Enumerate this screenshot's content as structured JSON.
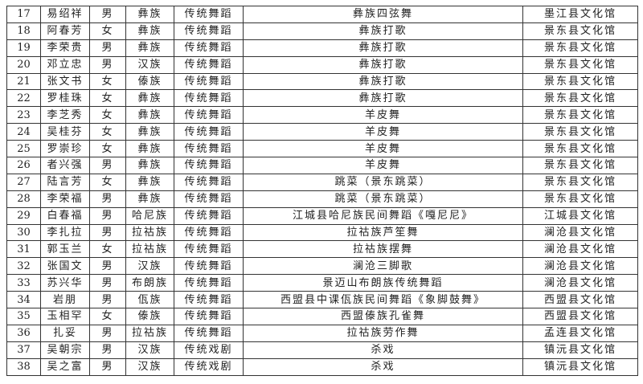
{
  "rows": [
    [
      "17",
      "易绍祥",
      "男",
      "彝族",
      "传统舞蹈",
      "彝族四弦舞",
      "墨江县文化馆"
    ],
    [
      "18",
      "阿春芳",
      "女",
      "彝族",
      "传统舞蹈",
      "彝族打歌",
      "景东县文化馆"
    ],
    [
      "19",
      "李荣贵",
      "男",
      "彝族",
      "传统舞蹈",
      "彝族打歌",
      "景东县文化馆"
    ],
    [
      "20",
      "邓立忠",
      "男",
      "汉族",
      "传统舞蹈",
      "彝族打歌",
      "景东县文化馆"
    ],
    [
      "21",
      "张文书",
      "女",
      "傣族",
      "传统舞蹈",
      "彝族打歌",
      "景东县文化馆"
    ],
    [
      "22",
      "罗桂珠",
      "女",
      "彝族",
      "传统舞蹈",
      "彝族打歌",
      "景东县文化馆"
    ],
    [
      "23",
      "李芝秀",
      "女",
      "彝族",
      "传统舞蹈",
      "羊皮舞",
      "景东县文化馆"
    ],
    [
      "24",
      "吴桂芬",
      "女",
      "彝族",
      "传统舞蹈",
      "羊皮舞",
      "景东县文化馆"
    ],
    [
      "25",
      "罗崇珍",
      "女",
      "彝族",
      "传统舞蹈",
      "羊皮舞",
      "景东县文化馆"
    ],
    [
      "26",
      "者兴强",
      "男",
      "彝族",
      "传统舞蹈",
      "羊皮舞",
      "景东县文化馆"
    ],
    [
      "27",
      "陆言芳",
      "女",
      "彝族",
      "传统舞蹈",
      "跳菜（景东跳菜）",
      "景东县文化馆"
    ],
    [
      "28",
      "李荣福",
      "男",
      "彝族",
      "传统舞蹈",
      "跳菜（景东跳菜）",
      "景东县文化馆"
    ],
    [
      "29",
      "白春福",
      "男",
      "哈尼族",
      "传统舞蹈",
      "江城县哈尼族民间舞蹈《嘎尼尼》",
      "江城县文化馆"
    ],
    [
      "30",
      "李扎拉",
      "男",
      "拉祜族",
      "传统舞蹈",
      "拉祜族芦笙舞",
      "澜沧县文化馆"
    ],
    [
      "31",
      "郭玉兰",
      "女",
      "拉祜族",
      "传统舞蹈",
      "拉祜族摆舞",
      "澜沧县文化馆"
    ],
    [
      "32",
      "张国文",
      "男",
      "汉族",
      "传统舞蹈",
      "澜沧三脚歌",
      "澜沧县文化馆"
    ],
    [
      "33",
      "苏兴华",
      "男",
      "布朗族",
      "传统舞蹈",
      "景迈山布朗族传统舞蹈",
      "澜沧县文化馆"
    ],
    [
      "34",
      "岩朋",
      "男",
      "佤族",
      "传统舞蹈",
      "西盟县中课佤族民间舞蹈《象脚鼓舞》",
      "西盟县文化馆"
    ],
    [
      "35",
      "玉相罕",
      "女",
      "傣族",
      "传统舞蹈",
      "西盟傣族孔雀舞",
      "西盟县文化馆"
    ],
    [
      "36",
      "扎妥",
      "男",
      "拉祜族",
      "传统舞蹈",
      "拉祜族劳作舞",
      "孟连县文化馆"
    ],
    [
      "37",
      "吴朝宗",
      "男",
      "汉族",
      "传统戏剧",
      "杀戏",
      "镇沅县文化馆"
    ],
    [
      "38",
      "吴之富",
      "男",
      "汉族",
      "传统戏剧",
      "杀戏",
      "镇沅县文化馆"
    ]
  ]
}
